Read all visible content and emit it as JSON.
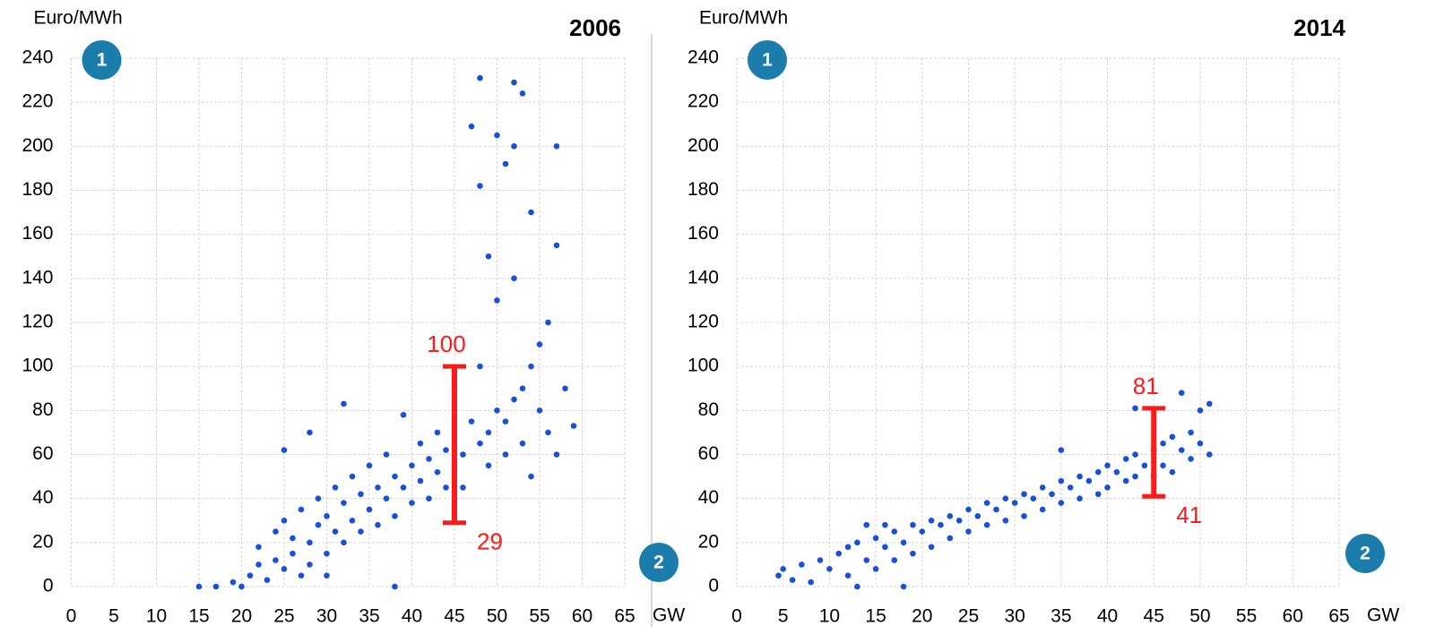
{
  "chart_data": [
    {
      "type": "scatter",
      "title": "2006",
      "y_label": "Euro/MWh",
      "x_label": "GW",
      "badges": [
        "1",
        "2"
      ],
      "color": "#1a4fd8",
      "grid": true,
      "xlim": [
        0,
        65
      ],
      "ylim": [
        0,
        240
      ],
      "xticks": [
        0,
        5,
        10,
        15,
        20,
        25,
        30,
        35,
        40,
        45,
        50,
        55,
        60,
        65
      ],
      "yticks": [
        0,
        20,
        40,
        60,
        80,
        100,
        120,
        140,
        160,
        180,
        200,
        220,
        240
      ],
      "range": {
        "x": 45,
        "low": 29,
        "high": 100,
        "color": "#ff1a1a"
      },
      "x": [
        15,
        17,
        19,
        20,
        21,
        22,
        22,
        23,
        24,
        24,
        25,
        25,
        25,
        26,
        26,
        27,
        27,
        28,
        28,
        28,
        29,
        29,
        30,
        30,
        31,
        31,
        32,
        32,
        32,
        33,
        33,
        34,
        34,
        35,
        35,
        36,
        36,
        37,
        37,
        38,
        38,
        39,
        39,
        40,
        40,
        41,
        41,
        42,
        42,
        43,
        43,
        44,
        44,
        45,
        45,
        46,
        46,
        47,
        47,
        48,
        48,
        48,
        48,
        49,
        49,
        49,
        50,
        50,
        50,
        51,
        51,
        51,
        52,
        52,
        52,
        52,
        53,
        53,
        53,
        54,
        54,
        55,
        55,
        56,
        56,
        57,
        57,
        58,
        59,
        57,
        54,
        30,
        38
      ],
      "values": [
        0,
        0,
        2,
        0,
        5,
        10,
        18,
        3,
        12,
        25,
        8,
        30,
        62,
        15,
        22,
        5,
        35,
        20,
        70,
        10,
        28,
        40,
        15,
        32,
        45,
        25,
        38,
        20,
        83,
        30,
        50,
        42,
        25,
        35,
        55,
        45,
        28,
        40,
        60,
        50,
        32,
        45,
        78,
        55,
        38,
        48,
        65,
        58,
        40,
        52,
        70,
        62,
        45,
        55,
        90,
        60,
        45,
        75,
        209,
        65,
        100,
        182,
        231,
        70,
        55,
        150,
        80,
        205,
        130,
        75,
        60,
        192,
        85,
        229,
        200,
        140,
        90,
        224,
        65,
        100,
        170,
        110,
        80,
        120,
        70,
        200,
        155,
        90,
        73,
        60,
        50,
        5,
        0
      ]
    },
    {
      "type": "scatter",
      "title": "2014",
      "y_label": "Euro/MWh",
      "x_label": "GW",
      "badges": [
        "1",
        "2"
      ],
      "color": "#1a4fd8",
      "grid": true,
      "xlim": [
        0,
        65
      ],
      "ylim": [
        0,
        240
      ],
      "xticks": [
        0,
        5,
        10,
        15,
        20,
        25,
        30,
        35,
        40,
        45,
        50,
        55,
        60,
        65
      ],
      "yticks": [
        0,
        20,
        40,
        60,
        80,
        100,
        120,
        140,
        160,
        180,
        200,
        220,
        240
      ],
      "range": {
        "x": 45,
        "low": 41,
        "high": 81,
        "color": "#ff1a1a"
      },
      "x": [
        4.5,
        5,
        6,
        7,
        8,
        9,
        10,
        11,
        12,
        12,
        13,
        13,
        14,
        15,
        15,
        16,
        16,
        17,
        17,
        18,
        19,
        19,
        20,
        21,
        21,
        22,
        23,
        23,
        24,
        25,
        25,
        26,
        27,
        27,
        28,
        29,
        29,
        30,
        31,
        31,
        32,
        33,
        33,
        34,
        35,
        35,
        35,
        36,
        37,
        37,
        38,
        39,
        39,
        40,
        40,
        41,
        42,
        42,
        43,
        43,
        43,
        44,
        45,
        45,
        46,
        46,
        47,
        47,
        48,
        48,
        49,
        49,
        50,
        50,
        51,
        51,
        18,
        14
      ],
      "values": [
        5,
        8,
        3,
        10,
        2,
        12,
        8,
        15,
        5,
        18,
        0,
        20,
        12,
        22,
        8,
        18,
        28,
        12,
        25,
        20,
        28,
        15,
        25,
        30,
        18,
        28,
        32,
        22,
        30,
        35,
        25,
        32,
        38,
        28,
        35,
        40,
        30,
        38,
        42,
        32,
        40,
        45,
        35,
        42,
        48,
        38,
        62,
        45,
        50,
        40,
        48,
        52,
        42,
        55,
        45,
        52,
        58,
        48,
        60,
        50,
        81,
        55,
        62,
        50,
        65,
        55,
        68,
        52,
        88,
        62,
        70,
        58,
        65,
        80,
        60,
        83,
        0,
        28
      ]
    }
  ]
}
